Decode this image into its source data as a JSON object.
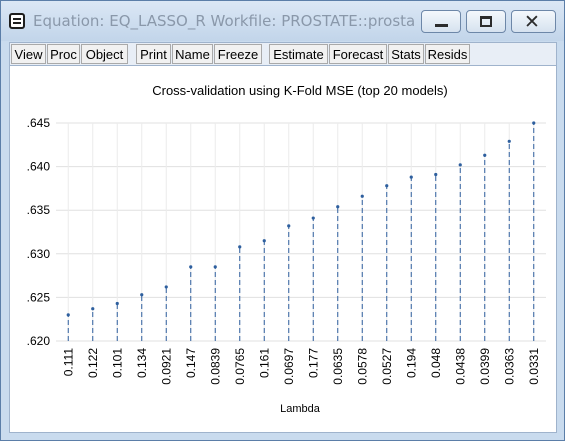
{
  "window": {
    "title": "Equation: EQ_LASSO_R   Workfile: PROSTATE::prostate\\"
  },
  "toolbar": {
    "buttons": [
      {
        "label": "View"
      },
      {
        "label": "Proc"
      },
      {
        "label": "Object"
      },
      {
        "label": "Print"
      },
      {
        "label": "Name"
      },
      {
        "label": "Freeze"
      },
      {
        "label": "Estimate"
      },
      {
        "label": "Forecast"
      },
      {
        "label": "Stats"
      },
      {
        "label": "Resids"
      }
    ]
  },
  "chart_data": {
    "type": "scatter",
    "style": "drop-lines",
    "title": "Cross-validation using K-Fold MSE (top 20 models)",
    "xlabel": "Lambda",
    "ylabel": "",
    "categories": [
      "0.111",
      "0.122",
      "0.101",
      "0.134",
      "0.0921",
      "0.147",
      "0.0839",
      "0.0765",
      "0.161",
      "0.0697",
      "0.177",
      "0.0635",
      "0.0578",
      "0.0527",
      "0.194",
      "0.048",
      "0.0438",
      "0.0399",
      "0.0363",
      "0.0331"
    ],
    "values": [
      0.623,
      0.6237,
      0.6243,
      0.6253,
      0.6262,
      0.6285,
      0.6285,
      0.6308,
      0.6315,
      0.6332,
      0.6341,
      0.6354,
      0.6366,
      0.6378,
      0.6388,
      0.6391,
      0.6402,
      0.6413,
      0.6429,
      0.645
    ],
    "y_ticks": [
      ".620",
      ".625",
      ".630",
      ".635",
      ".640",
      ".645"
    ],
    "ylim": [
      0.62,
      0.645
    ],
    "grid": true,
    "colors": {
      "drop_line": "#2e5f9e",
      "marker": "#2e5f9e",
      "grid": "#e0e0e0"
    }
  }
}
